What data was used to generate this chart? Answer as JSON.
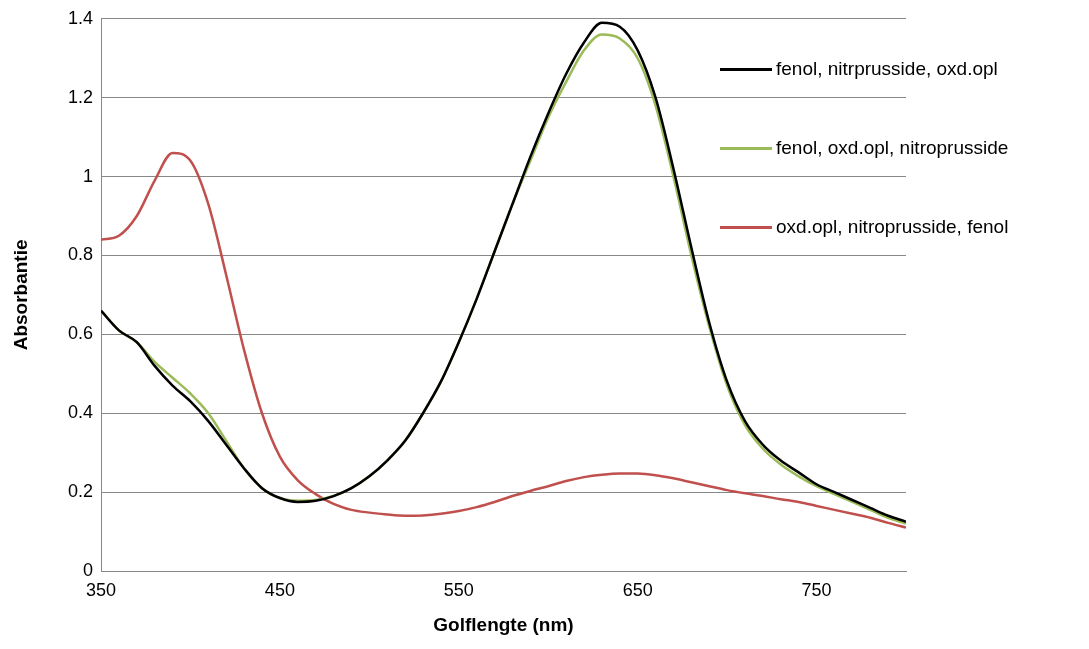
{
  "chart_data": {
    "type": "line",
    "xlabel": "Golflengte (nm)",
    "ylabel": "Absorbantie",
    "xlim": [
      350,
      800
    ],
    "xticks": [
      350,
      450,
      550,
      650,
      750
    ],
    "ylim": [
      0,
      1.4
    ],
    "yticks": [
      0,
      0.2,
      0.4,
      0.6,
      0.8,
      1,
      1.2,
      1.4
    ],
    "grid": "y",
    "legend": "top right",
    "marker": "none",
    "line_style": "solid",
    "x": [
      350,
      360,
      370,
      380,
      390,
      400,
      410,
      420,
      430,
      440,
      450,
      460,
      470,
      480,
      490,
      500,
      510,
      520,
      530,
      540,
      550,
      560,
      570,
      580,
      590,
      600,
      610,
      620,
      630,
      640,
      650,
      660,
      670,
      680,
      690,
      700,
      710,
      720,
      730,
      740,
      750,
      760,
      770,
      780,
      790,
      800
    ],
    "series": [
      {
        "name": "fenol, nitrprusside, oxd.opl",
        "color": "#000000",
        "values": [
          0.66,
          0.61,
          0.58,
          0.52,
          0.47,
          0.43,
          0.38,
          0.32,
          0.26,
          0.21,
          0.185,
          0.175,
          0.178,
          0.19,
          0.21,
          0.24,
          0.28,
          0.33,
          0.4,
          0.48,
          0.58,
          0.69,
          0.81,
          0.93,
          1.05,
          1.16,
          1.26,
          1.34,
          1.39,
          1.38,
          1.32,
          1.2,
          1.02,
          0.82,
          0.63,
          0.48,
          0.38,
          0.32,
          0.28,
          0.25,
          0.22,
          0.2,
          0.18,
          0.16,
          0.14,
          0.125
        ]
      },
      {
        "name": "fenol, oxd.opl, nitroprusside",
        "color": "#9bbb59",
        "values": [
          0.66,
          0.61,
          0.58,
          0.53,
          0.49,
          0.45,
          0.4,
          0.33,
          0.26,
          0.21,
          0.185,
          0.178,
          0.18,
          0.19,
          0.21,
          0.24,
          0.28,
          0.33,
          0.4,
          0.48,
          0.58,
          0.69,
          0.81,
          0.93,
          1.04,
          1.15,
          1.24,
          1.32,
          1.36,
          1.35,
          1.3,
          1.18,
          1.0,
          0.8,
          0.62,
          0.47,
          0.37,
          0.31,
          0.27,
          0.24,
          0.215,
          0.195,
          0.175,
          0.155,
          0.135,
          0.12
        ]
      },
      {
        "name": "oxd.opl, nitroprusside, fenol",
        "color": "#c0504d",
        "values": [
          0.84,
          0.85,
          0.9,
          0.99,
          1.06,
          1.04,
          0.93,
          0.75,
          0.56,
          0.4,
          0.29,
          0.23,
          0.195,
          0.17,
          0.155,
          0.148,
          0.143,
          0.14,
          0.141,
          0.145,
          0.152,
          0.162,
          0.175,
          0.19,
          0.203,
          0.215,
          0.228,
          0.238,
          0.244,
          0.247,
          0.247,
          0.243,
          0.235,
          0.225,
          0.215,
          0.205,
          0.197,
          0.19,
          0.182,
          0.175,
          0.165,
          0.155,
          0.145,
          0.135,
          0.122,
          0.11
        ]
      }
    ]
  }
}
